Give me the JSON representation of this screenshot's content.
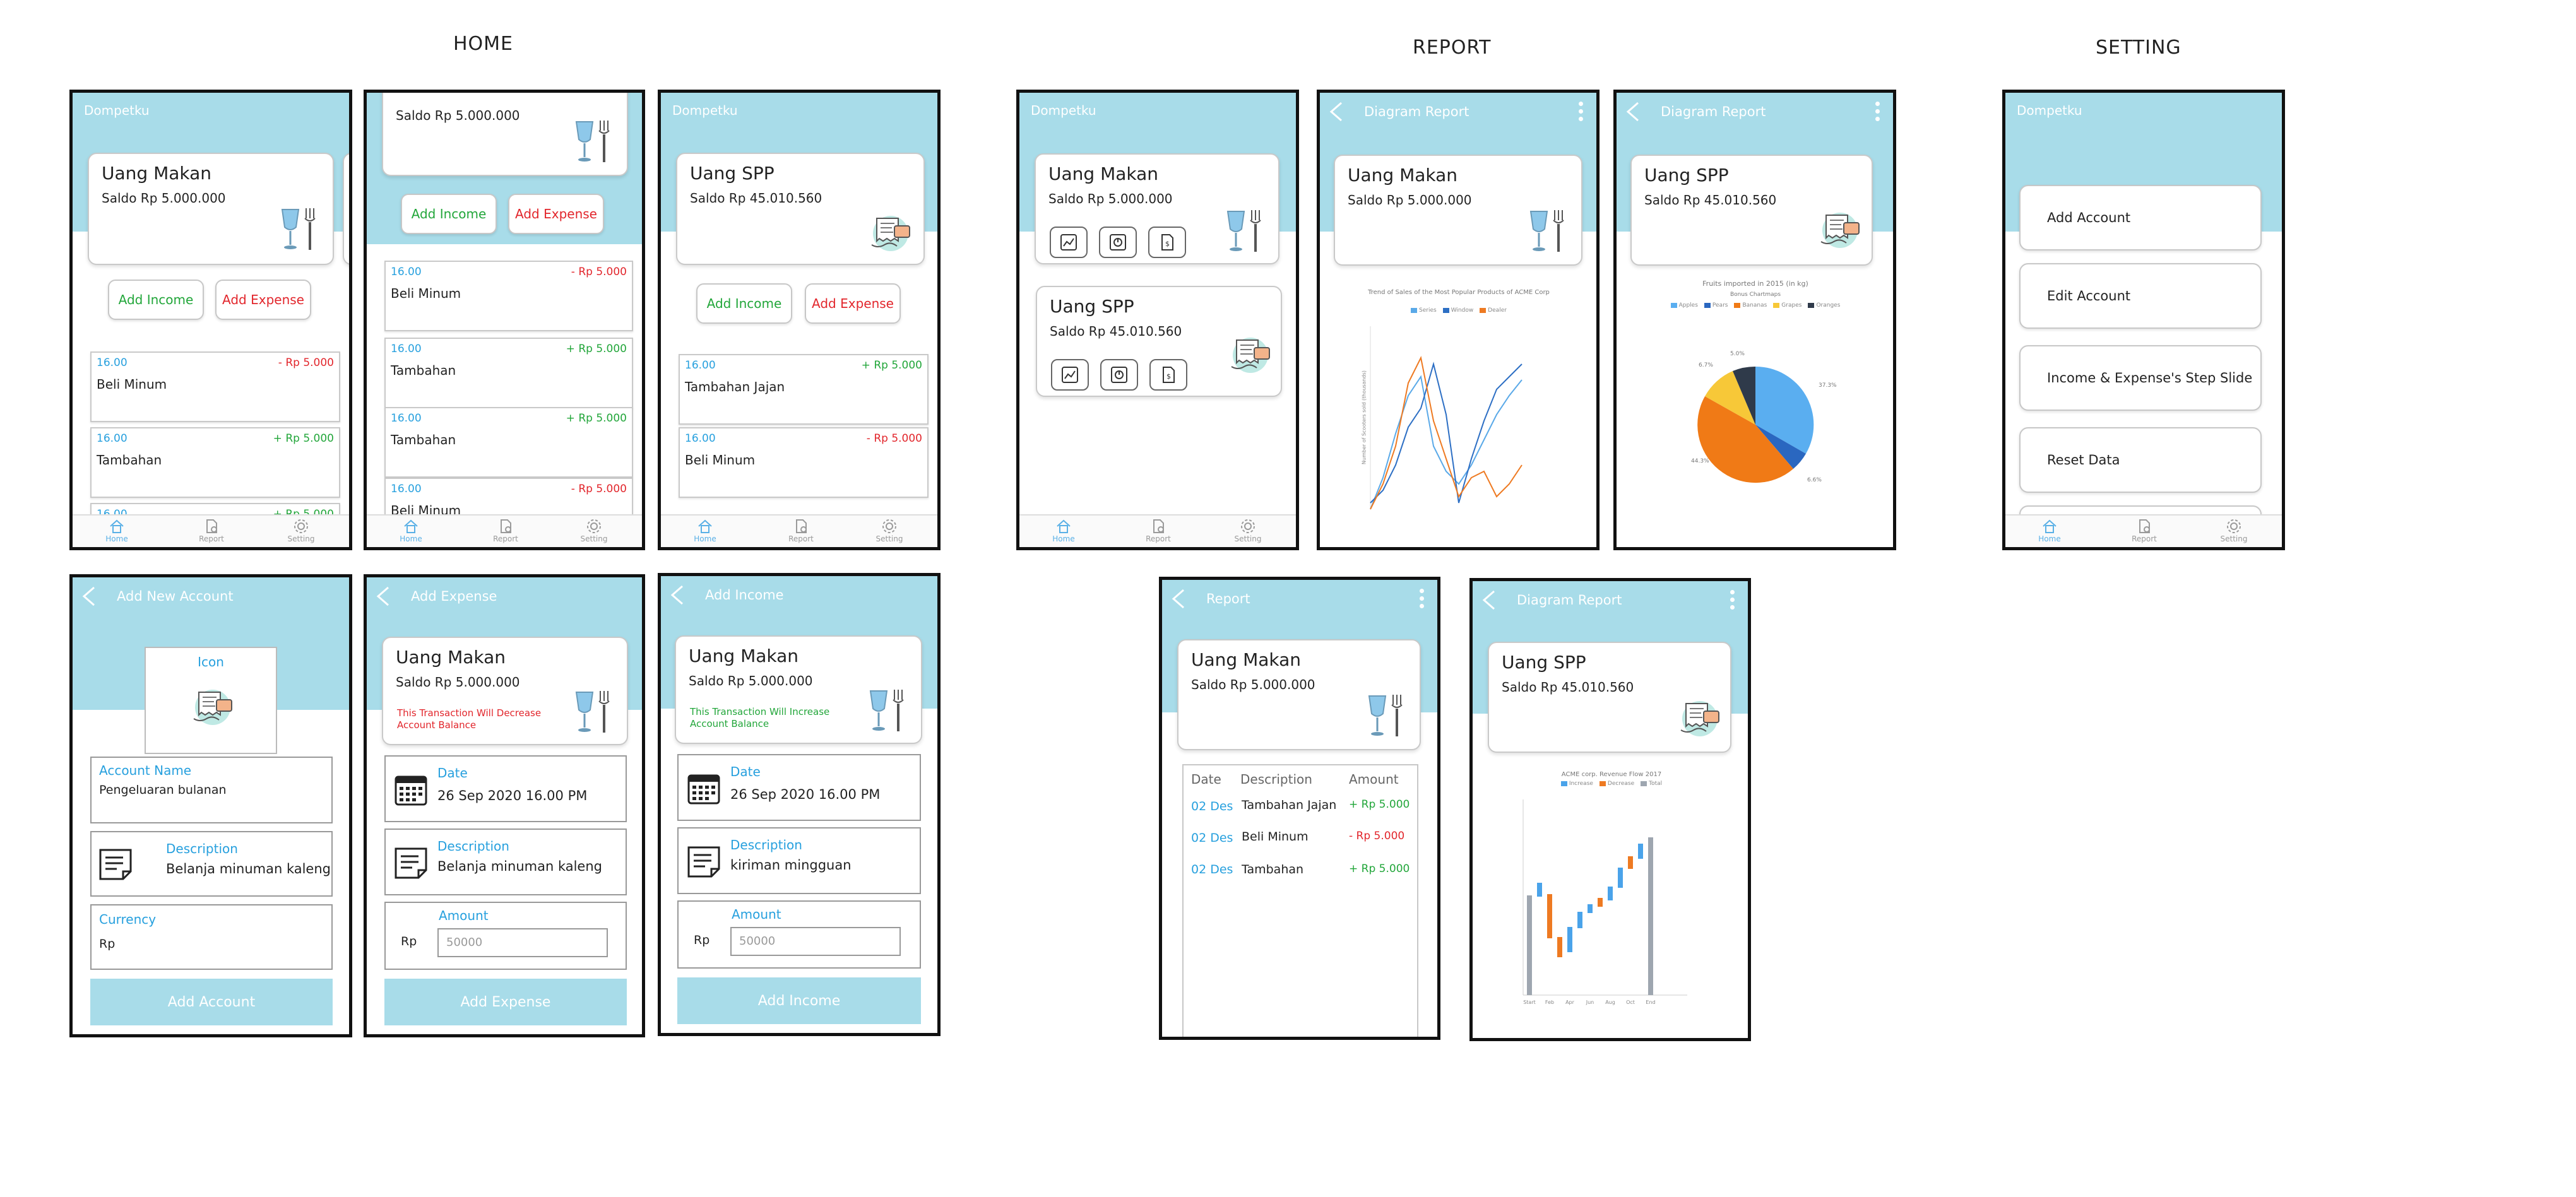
{
  "sections": {
    "home": "HOME",
    "report": "REPORT",
    "setting": "SETTING"
  },
  "app_name": "Dompetku",
  "nav": {
    "home": "Home",
    "report": "Report",
    "setting": "Setting"
  },
  "accounts": {
    "makan": {
      "name": "Uang Makan",
      "balance": "Saldo Rp 5.000.000"
    },
    "spp": {
      "name": "Uang SPP",
      "balance": "Saldo Rp  45.010.560"
    }
  },
  "buttons": {
    "add_income": "Add Income",
    "add_expense": "Add Expense",
    "add_account": "Add Account"
  },
  "home_tx_1": [
    {
      "time": "16.00",
      "amount": "- Rp 5.000",
      "desc": "Beli Minum",
      "kind": "expense"
    },
    {
      "time": "16.00",
      "amount": "+ Rp 5.000",
      "desc": "Tambahan",
      "kind": "income"
    },
    {
      "time": "16.00",
      "amount": "+ Rp 5.000",
      "desc": "",
      "kind": "income"
    }
  ],
  "home_tx_2": [
    {
      "time": "16.00",
      "amount": "- Rp 5.000",
      "desc": "Beli Minum",
      "kind": "expense"
    },
    {
      "time": "16.00",
      "amount": "+ Rp 5.000",
      "desc": "Tambahan",
      "kind": "income"
    },
    {
      "time": "16.00",
      "amount": "+ Rp 5.000",
      "desc": "Tambahan",
      "kind": "income"
    },
    {
      "time": "16.00",
      "amount": "- Rp 5.000",
      "desc": "Beli Minum",
      "kind": "expense"
    }
  ],
  "home_tx_3": [
    {
      "time": "16.00",
      "amount": "+ Rp 5.000",
      "desc": "Tambahan Jajan",
      "kind": "income"
    },
    {
      "time": "16.00",
      "amount": "- Rp 5.000",
      "desc": "Beli Minum",
      "kind": "expense"
    }
  ],
  "diagram_title": "Diagram Report",
  "report_title": "Report",
  "line_chart": {
    "title": "Trend of Sales of the Most Popular Products of ACME Corp",
    "legend": [
      "Series",
      "Window",
      "Dealer"
    ],
    "ylabel": "Number of Scooters sold (thousands)"
  },
  "pie_chart": {
    "title": "Fruits imported in 2015 (in kg)",
    "subtitle": "Bonus Chartmaps",
    "legend": [
      "Apples",
      "Pears",
      "Bananas",
      "Grapes",
      "Oranges"
    ],
    "labels": [
      "37.3%",
      "6.6%",
      "44.3%",
      "6.7%",
      "5.0%"
    ]
  },
  "waterfall_chart": {
    "title": "ACME corp. Revenue Flow 2017",
    "legend": [
      "Increase",
      "Decrease",
      "Total"
    ],
    "categories": [
      "Start",
      "Feb",
      "Apr",
      "Jun",
      "Aug",
      "Oct",
      "End"
    ]
  },
  "report_table": {
    "headers": [
      "Date",
      "Description",
      "Amount"
    ],
    "rows": [
      {
        "date": "02 Des",
        "desc": "Tambahan Jajan",
        "amount": "+ Rp 5.000",
        "kind": "income"
      },
      {
        "date": "02 Des",
        "desc": "Beli Minum",
        "amount": "- Rp 5.000",
        "kind": "expense"
      },
      {
        "date": "02 Des",
        "desc": "Tambahan",
        "amount": "+ Rp 5.000",
        "kind": "income"
      }
    ]
  },
  "settings": [
    "Add Account",
    "Edit Account",
    "Income & Expense's Step Slide",
    "Reset Data"
  ],
  "add_account": {
    "title": "Add New Account",
    "icon_label": "Icon",
    "name_label": "Account Name",
    "name_value": "Pengeluaran bulanan",
    "desc_label": "Description",
    "desc_value": "Belanja minuman kaleng",
    "currency_label": "Currency",
    "currency_value": "Rp"
  },
  "add_expense": {
    "title": "Add Expense",
    "note": "This Transaction Will Decrease Account Balance",
    "date_label": "Date",
    "date_value": "26 Sep 2020 16.00 PM",
    "desc_label": "Description",
    "desc_value": "Belanja minuman kaleng",
    "amount_label": "Amount",
    "currency": "Rp",
    "amount_placeholder": "50000"
  },
  "add_income": {
    "title": "Add Income",
    "note": "This Transaction Will Increase Account Balance",
    "date_label": "Date",
    "date_value": "26 Sep 2020 16.00 PM",
    "desc_label": "Description",
    "desc_value": "kiriman mingguan",
    "amount_label": "Amount",
    "currency": "Rp",
    "amount_placeholder": "50000"
  },
  "colors": {
    "header": "#a8dce9",
    "income": "#22a63a",
    "expense": "#e2262c",
    "accent": "#27a0de"
  }
}
